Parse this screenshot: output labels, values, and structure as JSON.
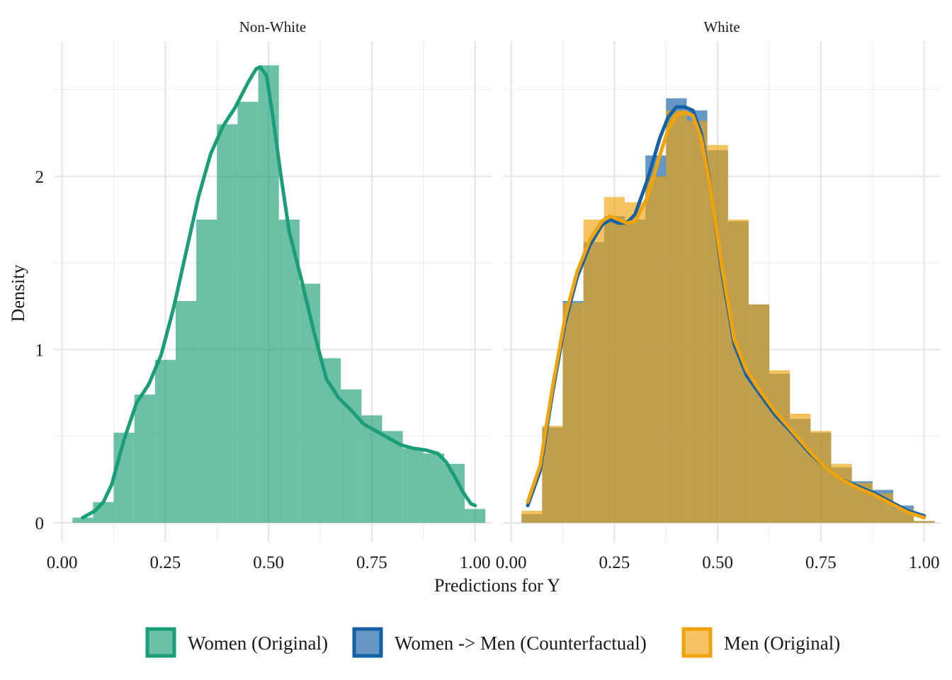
{
  "chart_data": {
    "type": "histogram",
    "xlabel": "Predictions for Y",
    "ylabel": "Density",
    "xlim": [
      -0.02,
      1.04
    ],
    "ylim": [
      -0.11,
      2.78
    ],
    "x_ticks": [
      "0.00",
      "0.25",
      "0.50",
      "0.75",
      "1.00"
    ],
    "x_tick_values": [
      0,
      0.25,
      0.5,
      0.75,
      1.0
    ],
    "y_ticks": [
      "0",
      "1",
      "2"
    ],
    "y_tick_values": [
      0,
      1,
      2
    ],
    "grid": true,
    "legend_position": "bottom",
    "series": [
      {
        "key": "women",
        "name": "Women (Original)",
        "color": "#1b9e77"
      },
      {
        "key": "cf",
        "name": "Women -> Men (Counterfactual)",
        "color": "#1561a6"
      },
      {
        "key": "men",
        "name": "Men (Original)",
        "color": "#f0a30a"
      }
    ],
    "bin_width": 0.05,
    "panels": [
      {
        "title": "Non-White",
        "histograms": [
          {
            "series": "women",
            "bin_starts": [
              0.025,
              0.075,
              0.125,
              0.175,
              0.225,
              0.275,
              0.325,
              0.375,
              0.425,
              0.475,
              0.525,
              0.575,
              0.625,
              0.675,
              0.725,
              0.775,
              0.825,
              0.875,
              0.925,
              0.975
            ],
            "values": [
              0.03,
              0.12,
              0.52,
              0.74,
              0.94,
              1.28,
              1.75,
              2.3,
              2.43,
              2.64,
              1.75,
              1.38,
              0.95,
              0.77,
              0.62,
              0.53,
              0.43,
              0.4,
              0.34,
              0.08
            ]
          }
        ],
        "density_lines": [
          {
            "series": "women",
            "x": [
              0.05,
              0.08,
              0.1,
              0.12,
              0.15,
              0.18,
              0.21,
              0.24,
              0.27,
              0.3,
              0.33,
              0.36,
              0.39,
              0.42,
              0.45,
              0.47,
              0.48,
              0.495,
              0.51,
              0.53,
              0.55,
              0.58,
              0.61,
              0.64,
              0.67,
              0.7,
              0.73,
              0.76,
              0.79,
              0.82,
              0.85,
              0.88,
              0.91,
              0.93,
              0.95,
              0.97,
              0.99,
              1.0
            ],
            "y": [
              0.03,
              0.07,
              0.12,
              0.22,
              0.48,
              0.69,
              0.8,
              0.97,
              1.24,
              1.56,
              1.88,
              2.13,
              2.29,
              2.4,
              2.54,
              2.62,
              2.63,
              2.58,
              2.35,
              2.0,
              1.68,
              1.4,
              1.1,
              0.83,
              0.72,
              0.65,
              0.57,
              0.53,
              0.49,
              0.45,
              0.43,
              0.42,
              0.4,
              0.35,
              0.27,
              0.18,
              0.11,
              0.1
            ]
          }
        ]
      },
      {
        "title": "White",
        "histograms": [
          {
            "series": "cf",
            "bin_starts": [
              0.025,
              0.075,
              0.125,
              0.175,
              0.225,
              0.275,
              0.325,
              0.375,
              0.425,
              0.475,
              0.525,
              0.575,
              0.625,
              0.675,
              0.725,
              0.775,
              0.825,
              0.875,
              0.925,
              0.975
            ],
            "values": [
              0.05,
              0.55,
              1.28,
              1.62,
              1.77,
              1.75,
              2.12,
              2.45,
              2.38,
              2.15,
              1.74,
              1.26,
              0.86,
              0.6,
              0.52,
              0.32,
              0.24,
              0.19,
              0.1,
              0.01
            ]
          },
          {
            "series": "men",
            "bin_starts": [
              0.025,
              0.075,
              0.125,
              0.175,
              0.225,
              0.275,
              0.325,
              0.375,
              0.425,
              0.475,
              0.525,
              0.575,
              0.625,
              0.675,
              0.725,
              0.775,
              0.825,
              0.875,
              0.925,
              0.975
            ],
            "values": [
              0.07,
              0.56,
              1.27,
              1.75,
              1.88,
              1.85,
              2.0,
              2.38,
              2.32,
              2.18,
              1.75,
              1.26,
              0.88,
              0.63,
              0.53,
              0.34,
              0.23,
              0.17,
              0.08,
              0.01
            ]
          }
        ],
        "density_lines": [
          {
            "series": "cf",
            "x": [
              0.04,
              0.07,
              0.1,
              0.13,
              0.16,
              0.19,
              0.22,
              0.24,
              0.26,
              0.28,
              0.3,
              0.33,
              0.36,
              0.38,
              0.4,
              0.42,
              0.44,
              0.46,
              0.48,
              0.51,
              0.54,
              0.57,
              0.6,
              0.64,
              0.68,
              0.72,
              0.76,
              0.8,
              0.84,
              0.88,
              0.92,
              0.96,
              1.0
            ],
            "y": [
              0.1,
              0.3,
              0.75,
              1.15,
              1.42,
              1.6,
              1.72,
              1.75,
              1.73,
              1.73,
              1.78,
              1.98,
              2.22,
              2.34,
              2.4,
              2.4,
              2.38,
              2.25,
              1.98,
              1.45,
              1.03,
              0.85,
              0.75,
              0.62,
              0.52,
              0.41,
              0.32,
              0.25,
              0.21,
              0.17,
              0.12,
              0.07,
              0.04
            ]
          },
          {
            "series": "men",
            "x": [
              0.04,
              0.07,
              0.1,
              0.13,
              0.16,
              0.19,
              0.22,
              0.24,
              0.26,
              0.28,
              0.3,
              0.33,
              0.36,
              0.38,
              0.4,
              0.42,
              0.44,
              0.46,
              0.48,
              0.51,
              0.54,
              0.57,
              0.6,
              0.64,
              0.68,
              0.72,
              0.76,
              0.8,
              0.84,
              0.88,
              0.92,
              0.96,
              1.0
            ],
            "y": [
              0.12,
              0.33,
              0.78,
              1.18,
              1.45,
              1.63,
              1.74,
              1.77,
              1.75,
              1.73,
              1.74,
              1.88,
              2.12,
              2.27,
              2.35,
              2.37,
              2.35,
              2.22,
              1.97,
              1.48,
              1.06,
              0.88,
              0.77,
              0.64,
              0.53,
              0.42,
              0.32,
              0.25,
              0.2,
              0.16,
              0.11,
              0.06,
              0.03
            ]
          }
        ]
      }
    ]
  }
}
